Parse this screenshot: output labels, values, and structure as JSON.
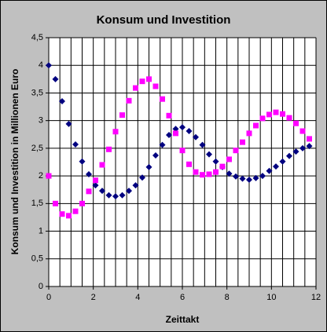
{
  "chart_data": {
    "type": "scatter",
    "title": "Konsum und Investition",
    "x_label": "Zeittakt",
    "y_label": "Konsum und Investition in Millionen Euro",
    "x": [
      0,
      0.3,
      0.6,
      0.9,
      1.2,
      1.5,
      1.8,
      2.1,
      2.4,
      2.7,
      3.0,
      3.3,
      3.6,
      3.9,
      4.2,
      4.5,
      4.8,
      5.1,
      5.4,
      5.7,
      6.0,
      6.3,
      6.6,
      6.9,
      7.2,
      7.5,
      7.8,
      8.1,
      8.4,
      8.7,
      9.0,
      9.3,
      9.6,
      9.9,
      10.2,
      10.5,
      10.8,
      11.1,
      11.4,
      11.7
    ],
    "series": [
      {
        "color": "#000080",
        "marker": "diamond",
        "values": [
          4.0,
          3.75,
          3.35,
          2.94,
          2.57,
          2.26,
          2.03,
          1.83,
          1.73,
          1.65,
          1.63,
          1.65,
          1.73,
          1.83,
          1.97,
          2.16,
          2.37,
          2.56,
          2.74,
          2.85,
          2.88,
          2.81,
          2.7,
          2.56,
          2.39,
          2.26,
          2.16,
          2.04,
          1.99,
          1.95,
          1.93,
          1.96,
          2.0,
          2.09,
          2.17,
          2.26,
          2.36,
          2.44,
          2.5,
          2.54
        ]
      },
      {
        "color": "#ff00ff",
        "marker": "square",
        "values": [
          2.0,
          1.5,
          1.31,
          1.28,
          1.36,
          1.5,
          1.72,
          1.92,
          2.2,
          2.48,
          2.8,
          3.1,
          3.36,
          3.59,
          3.71,
          3.75,
          3.62,
          3.39,
          3.09,
          2.77,
          2.46,
          2.21,
          2.07,
          2.02,
          2.03,
          2.07,
          2.17,
          2.3,
          2.46,
          2.61,
          2.77,
          2.91,
          3.04,
          3.11,
          3.15,
          3.12,
          3.05,
          2.95,
          2.81,
          2.67
        ]
      }
    ],
    "xlim": [
      0,
      12
    ],
    "xticks": [
      0,
      2,
      4,
      6,
      8,
      10,
      12
    ],
    "xgrid": [
      0,
      0.5,
      1,
      1.5,
      2,
      2.5,
      3,
      3.5,
      4,
      4.5,
      5,
      5.5,
      6,
      6.5,
      7,
      7.5,
      8,
      8.5,
      9,
      9.5,
      10,
      10.5,
      11,
      11.5,
      12
    ],
    "ylim": [
      0,
      4.5
    ],
    "yticks": [
      0,
      {
        "value": 0.5,
        "label": "0,5"
      },
      1,
      {
        "value": 1.5,
        "label": "1,5"
      },
      2,
      {
        "value": 2.5,
        "label": "2,5"
      },
      3,
      {
        "value": 3.5,
        "label": "3,5"
      },
      4,
      {
        "value": 4.5,
        "label": "4,5"
      }
    ],
    "grid": true
  }
}
